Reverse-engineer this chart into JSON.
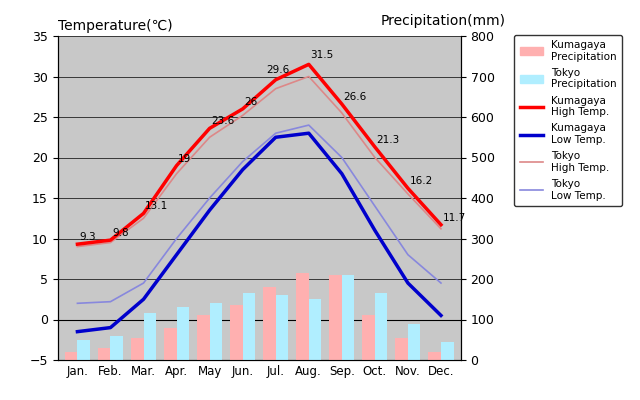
{
  "months": [
    "Jan.",
    "Feb.",
    "Mar.",
    "Apr.",
    "May",
    "Jun.",
    "Jul.",
    "Aug.",
    "Sep.",
    "Oct.",
    "Nov.",
    "Dec."
  ],
  "kumagaya_high": [
    9.3,
    9.8,
    13.1,
    19.0,
    23.6,
    26.0,
    29.6,
    31.5,
    26.6,
    21.3,
    16.2,
    11.7
  ],
  "kumagaya_low": [
    -1.5,
    -1.0,
    2.5,
    8.0,
    13.5,
    18.5,
    22.5,
    23.0,
    18.0,
    11.0,
    4.5,
    0.5
  ],
  "tokyo_high": [
    9.0,
    9.5,
    12.5,
    18.0,
    22.5,
    25.2,
    28.5,
    30.0,
    25.5,
    20.0,
    15.5,
    11.2
  ],
  "tokyo_low": [
    2.0,
    2.2,
    4.5,
    10.0,
    15.0,
    19.5,
    23.0,
    24.0,
    20.0,
    14.0,
    8.0,
    4.5
  ],
  "kumagaya_high_labels": [
    "9.3",
    "9.8",
    "13.1",
    "19",
    "23.6",
    "26",
    "29.6",
    "31.5",
    "26.6",
    "21.3",
    "16.2",
    "11.7"
  ],
  "kumagaya_precip_mm": [
    20,
    30,
    55,
    80,
    110,
    135,
    180,
    215,
    210,
    110,
    55,
    20
  ],
  "tokyo_precip_mm": [
    50,
    60,
    115,
    130,
    140,
    165,
    160,
    150,
    210,
    165,
    90,
    45
  ],
  "title_left": "Temperature(℃)",
  "title_right": "Precipitation(mm)",
  "ylim_left": [
    -5,
    35
  ],
  "ylim_right": [
    0,
    800
  ],
  "yticks_left": [
    -5,
    0,
    5,
    10,
    15,
    20,
    25,
    30,
    35
  ],
  "yticks_right": [
    0,
    100,
    200,
    300,
    400,
    500,
    600,
    700,
    800
  ],
  "bg_color": "#c8c8c8",
  "kumagaya_high_color": "#ff0000",
  "kumagaya_low_color": "#0000cc",
  "tokyo_high_color": "#dd8888",
  "tokyo_low_color": "#8888dd",
  "kumagaya_precip_color": "#ffb0b0",
  "tokyo_precip_color": "#b0eeff",
  "bar_width": 0.38
}
